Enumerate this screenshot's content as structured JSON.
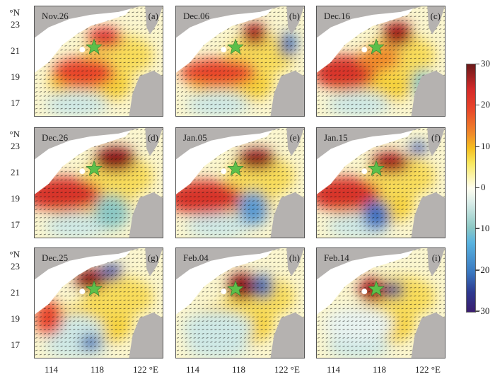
{
  "panels": [
    {
      "date": "Nov.26",
      "letter": "(a)"
    },
    {
      "date": "Dec.06",
      "letter": "(b)"
    },
    {
      "date": "Dec.16",
      "letter": "(c)"
    },
    {
      "date": "Dec.26",
      "letter": "(d)"
    },
    {
      "date": "Jan.05",
      "letter": "(e)"
    },
    {
      "date": "Jan.15",
      "letter": "(f)"
    },
    {
      "date": "Dec.25",
      "letter": "(g)"
    },
    {
      "date": "Feb.04",
      "letter": "(h)"
    },
    {
      "date": "Feb.14",
      "letter": "(i)"
    }
  ],
  "lat_axis": {
    "unit": "°N",
    "ticks": [
      "23",
      "21",
      "19",
      "17"
    ]
  },
  "lon_axis": {
    "ticks": [
      "114",
      "118",
      "122 °E"
    ]
  },
  "colorbar": {
    "ticks": [
      "30",
      "20",
      "10",
      "0",
      "−10",
      "−20",
      "−30"
    ],
    "range": [
      -30,
      30
    ]
  }
}
